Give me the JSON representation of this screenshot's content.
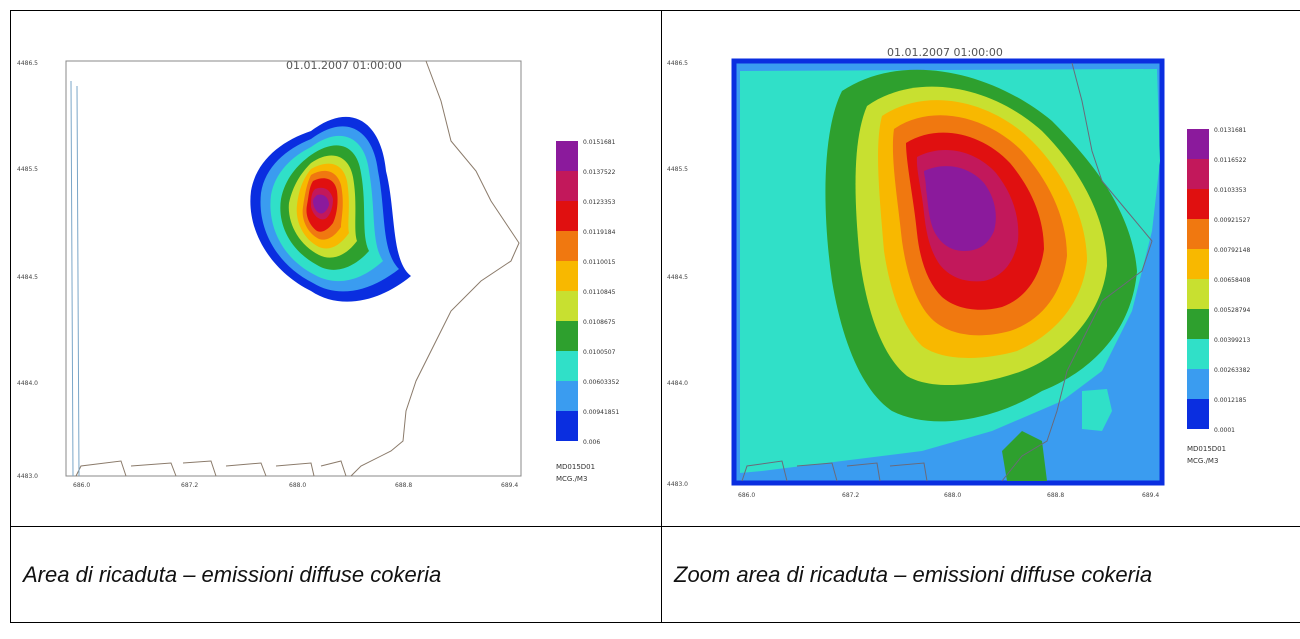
{
  "panels": [
    {
      "title": "01.01.2007  01:00:00",
      "y_ticks": [
        "4486.5",
        "4485.5",
        "4484.5",
        "4484.0",
        "4483.0"
      ],
      "x_ticks": [
        "686.0",
        "687.2",
        "688.0",
        "688.8",
        "689.4"
      ],
      "legend": [
        "0.0151681",
        "0.0137522",
        "0.0123353",
        "0.0119184",
        "0.0110015",
        "0.0110845",
        "0.0108675",
        "0.0100507",
        "0.00603352",
        "0.00941851",
        "0.006"
      ],
      "legend_title": "MD015D01",
      "legend_unit": "MCG./M3",
      "caption": "Area di ricaduta – emissioni diffuse cokeria"
    },
    {
      "title": "01.01.2007  01:00:00",
      "y_ticks": [
        "4486.5",
        "4485.5",
        "4484.5",
        "4484.0",
        "4483.0"
      ],
      "x_ticks": [
        "686.0",
        "687.2",
        "688.0",
        "688.8",
        "689.4"
      ],
      "legend": [
        "0.0131681",
        "0.0116522",
        "0.0103353",
        "0.00921527",
        "0.00792148",
        "0.00658408",
        "0.00528794",
        "0.00399213",
        "0.00263382",
        "0.0012185",
        "0.0001"
      ],
      "legend_title": "MD015D01",
      "legend_unit": "MCG./M3",
      "caption": "Zoom area di ricaduta – emissioni diffuse cokeria"
    }
  ],
  "colors": {
    "levels": [
      "#8b1a9c",
      "#c2185b",
      "#e01010",
      "#f07810",
      "#f8b800",
      "#c8e030",
      "#2ea02e",
      "#30e0c8",
      "#3a9cf0",
      "#0a2ee0"
    ]
  }
}
